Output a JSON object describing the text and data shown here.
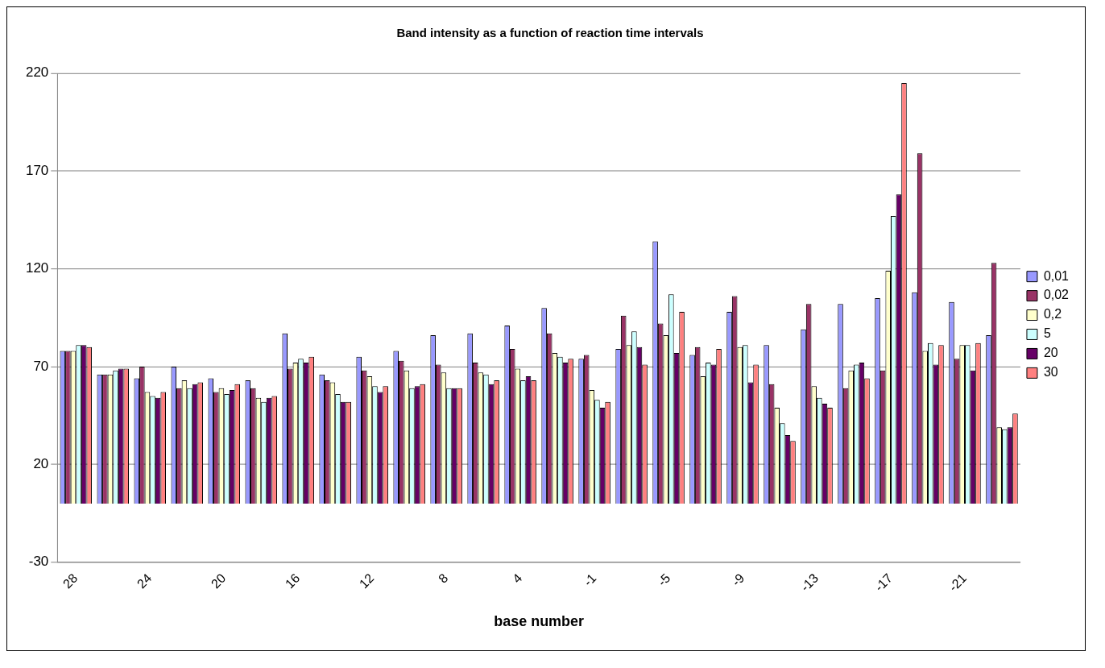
{
  "chart_data": {
    "type": "bar",
    "title": "Band intensity as a function of reaction time intervals",
    "xlabel": "base number",
    "categories": [
      "28",
      null,
      "24",
      null,
      "20",
      null,
      "16",
      null,
      "12",
      null,
      "8",
      null,
      "4",
      null,
      "-1",
      null,
      "-5",
      null,
      "-9",
      null,
      "-13",
      null,
      "-17",
      null,
      "-21",
      null
    ],
    "series": [
      {
        "name": "0,01",
        "color": "#9999ff",
        "values": [
          78,
          66,
          64,
          70,
          64,
          63,
          87,
          66,
          75,
          78,
          86,
          87,
          91,
          100,
          74,
          79,
          134,
          76,
          98,
          81,
          89,
          102,
          105,
          108,
          103,
          86
        ]
      },
      {
        "name": "0,02",
        "color": "#993366",
        "values": [
          78,
          66,
          70,
          59,
          57,
          59,
          69,
          63,
          68,
          73,
          71,
          72,
          79,
          87,
          76,
          96,
          92,
          80,
          106,
          61,
          102,
          59,
          68,
          179,
          74,
          123
        ]
      },
      {
        "name": "0,2",
        "color": "#ffffcc",
        "values": [
          78,
          66,
          57,
          63,
          59,
          54,
          72,
          62,
          65,
          68,
          67,
          67,
          69,
          77,
          58,
          81,
          86,
          65,
          80,
          49,
          60,
          68,
          119,
          78,
          81,
          39
        ]
      },
      {
        "name": "5",
        "color": "#ccffff",
        "values": [
          81,
          68,
          55,
          59,
          56,
          52,
          74,
          56,
          60,
          59,
          59,
          66,
          63,
          75,
          53,
          88,
          107,
          72,
          81,
          41,
          54,
          71,
          147,
          82,
          81,
          38
        ]
      },
      {
        "name": "20",
        "color": "#660066",
        "values": [
          81,
          69,
          54,
          61,
          58,
          54,
          72,
          52,
          57,
          60,
          59,
          61,
          65,
          72,
          49,
          80,
          77,
          71,
          62,
          35,
          51,
          72,
          158,
          71,
          68,
          39
        ]
      },
      {
        "name": "30",
        "color": "#ff8080",
        "values": [
          80,
          69,
          57,
          62,
          61,
          55,
          75,
          52,
          60,
          61,
          59,
          63,
          63,
          74,
          52,
          71,
          98,
          79,
          71,
          32,
          49,
          64,
          215,
          81,
          82,
          46
        ]
      }
    ],
    "ylim": [
      -30,
      220
    ],
    "yticks": [
      -30,
      20,
      70,
      120,
      170,
      220
    ],
    "grid": "y",
    "legend": "right"
  }
}
